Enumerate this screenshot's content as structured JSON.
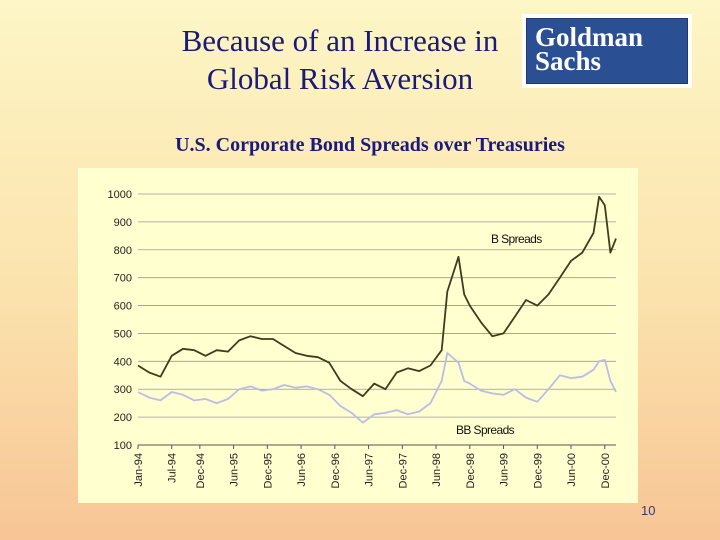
{
  "slide": {
    "title_line1": "Because of an Increase in",
    "title_line2": "Global Risk Aversion",
    "page_number": "10"
  },
  "logo": {
    "line1": "Goldman",
    "line2": "Sachs",
    "bg_color": "#2a4f92"
  },
  "chart_data": {
    "type": "line",
    "title": "U.S. Corporate Bond Spreads over Treasuries",
    "xlabel": "",
    "ylabel": "",
    "ylim": [
      100,
      1000
    ],
    "yticks": [
      100,
      200,
      300,
      400,
      500,
      600,
      700,
      800,
      900,
      1000
    ],
    "xticks": [
      "Jan-94",
      "Jul-94",
      "Dec-94",
      "Jun-95",
      "Dec-95",
      "Jun-96",
      "Dec-96",
      "Jun-97",
      "Dec-97",
      "Jun-98",
      "Dec-98",
      "Jun-99",
      "Dec-99",
      "Jun-00",
      "Dec-00"
    ],
    "xlim": [
      "Jan-94",
      "Feb-01"
    ],
    "grid": "horizontal",
    "legend": "inline labels",
    "series": [
      {
        "name": "B Spreads",
        "color": "#3d3d1e",
        "points": [
          [
            "Jan-94",
            385
          ],
          [
            "Mar-94",
            360
          ],
          [
            "May-94",
            345
          ],
          [
            "Jul-94",
            420
          ],
          [
            "Sep-94",
            445
          ],
          [
            "Nov-94",
            440
          ],
          [
            "Jan-95",
            420
          ],
          [
            "Mar-95",
            440
          ],
          [
            "May-95",
            435
          ],
          [
            "Jul-95",
            475
          ],
          [
            "Sep-95",
            490
          ],
          [
            "Nov-95",
            480
          ],
          [
            "Jan-96",
            480
          ],
          [
            "Mar-96",
            455
          ],
          [
            "May-96",
            430
          ],
          [
            "Jul-96",
            420
          ],
          [
            "Sep-96",
            415
          ],
          [
            "Nov-96",
            395
          ],
          [
            "Jan-97",
            330
          ],
          [
            "Mar-97",
            300
          ],
          [
            "May-97",
            275
          ],
          [
            "Jul-97",
            320
          ],
          [
            "Sep-97",
            300
          ],
          [
            "Nov-97",
            360
          ],
          [
            "Jan-98",
            375
          ],
          [
            "Mar-98",
            365
          ],
          [
            "May-98",
            385
          ],
          [
            "Jul-98",
            440
          ],
          [
            "Aug-98",
            650
          ],
          [
            "Oct-98",
            775
          ],
          [
            "Nov-98",
            640
          ],
          [
            "Dec-98",
            600
          ],
          [
            "Feb-99",
            540
          ],
          [
            "Apr-99",
            490
          ],
          [
            "Jun-99",
            500
          ],
          [
            "Aug-99",
            560
          ],
          [
            "Oct-99",
            620
          ],
          [
            "Dec-99",
            600
          ],
          [
            "Feb-00",
            640
          ],
          [
            "Apr-00",
            700
          ],
          [
            "Jun-00",
            760
          ],
          [
            "Aug-00",
            790
          ],
          [
            "Oct-00",
            860
          ],
          [
            "Nov-00",
            990
          ],
          [
            "Dec-00",
            960
          ],
          [
            "Jan-01",
            790
          ],
          [
            "Feb-01",
            840
          ]
        ]
      },
      {
        "name": "BB Spreads",
        "color": "#b9bde8",
        "points": [
          [
            "Jan-94",
            290
          ],
          [
            "Mar-94",
            270
          ],
          [
            "May-94",
            260
          ],
          [
            "Jul-94",
            290
          ],
          [
            "Sep-94",
            280
          ],
          [
            "Nov-94",
            260
          ],
          [
            "Jan-95",
            265
          ],
          [
            "Mar-95",
            250
          ],
          [
            "May-95",
            265
          ],
          [
            "Jul-95",
            300
          ],
          [
            "Sep-95",
            310
          ],
          [
            "Nov-95",
            295
          ],
          [
            "Jan-96",
            300
          ],
          [
            "Mar-96",
            315
          ],
          [
            "May-96",
            305
          ],
          [
            "Jul-96",
            310
          ],
          [
            "Sep-96",
            300
          ],
          [
            "Nov-96",
            280
          ],
          [
            "Jan-97",
            240
          ],
          [
            "Mar-97",
            215
          ],
          [
            "May-97",
            180
          ],
          [
            "Jul-97",
            210
          ],
          [
            "Sep-97",
            215
          ],
          [
            "Nov-97",
            225
          ],
          [
            "Jan-98",
            210
          ],
          [
            "Mar-98",
            220
          ],
          [
            "May-98",
            250
          ],
          [
            "Jul-98",
            330
          ],
          [
            "Aug-98",
            430
          ],
          [
            "Oct-98",
            395
          ],
          [
            "Nov-98",
            330
          ],
          [
            "Dec-98",
            320
          ],
          [
            "Feb-99",
            295
          ],
          [
            "Apr-99",
            285
          ],
          [
            "Jun-99",
            280
          ],
          [
            "Aug-99",
            300
          ],
          [
            "Oct-99",
            270
          ],
          [
            "Dec-99",
            255
          ],
          [
            "Feb-00",
            300
          ],
          [
            "Apr-00",
            350
          ],
          [
            "Jun-00",
            340
          ],
          [
            "Aug-00",
            345
          ],
          [
            "Oct-00",
            370
          ],
          [
            "Nov-00",
            400
          ],
          [
            "Dec-00",
            405
          ],
          [
            "Jan-01",
            330
          ],
          [
            "Feb-01",
            290
          ]
        ]
      }
    ]
  }
}
